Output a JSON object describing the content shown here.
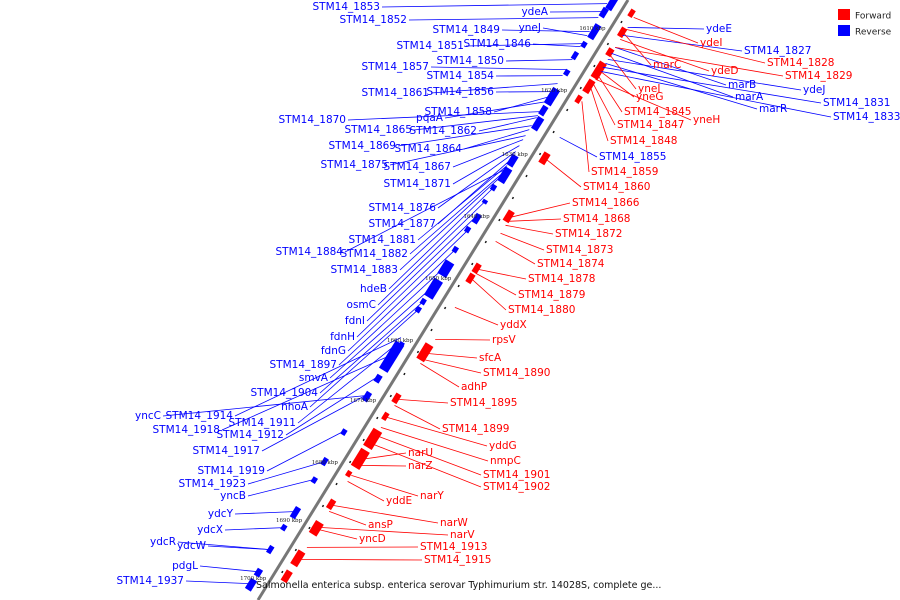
{
  "legend": [
    {
      "label": "Forward",
      "color": "#ff0000"
    },
    {
      "label": "Reverse",
      "color": "#0000ff"
    }
  ],
  "caption": "Salmonella enterica subsp. enterica serovar Typhimurium str. 14028S, complete ge...",
  "colors": {
    "forward": "#ff0000",
    "reverse": "#0000ff",
    "axis": "#777777"
  },
  "ticks": [
    "1610 kbp",
    "1620 kbp",
    "1630 kbp",
    "1640 kbp",
    "1650 kbp",
    "1660 kbp",
    "1670 kbp",
    "1680 kbp",
    "1690 kbp",
    "1700 kbp"
  ],
  "reverse_labels": [
    "STM14_1853",
    "STM14_1852",
    "ydeA",
    "STM14_1849",
    "yneJ",
    "STM14_1851",
    "STM14_1846",
    "STM14_1850",
    "STM14_1857",
    "STM14_1854",
    "STM14_1861",
    "STM14_1856",
    "STM14_1858",
    "pqaA",
    "STM14_1870",
    "STM14_1865",
    "STM14_1862",
    "STM14_1869",
    "STM14_1864",
    "STM14_1875",
    "STM14_1867",
    "STM14_1871",
    "STM14_1876",
    "STM14_1877",
    "STM14_1881",
    "STM14_1884",
    "STM14_1882",
    "STM14_1883",
    "hdeB",
    "osmC",
    "fdnI",
    "fdnH",
    "fdnG",
    "STM14_1897",
    "smvA",
    "STM14_1904",
    "nhoA",
    "yncC",
    "STM14_1914",
    "STM14_1911",
    "STM14_1918",
    "STM14_1912",
    "STM14_1917",
    "STM14_1919",
    "STM14_1923",
    "yncB",
    "ydcY",
    "ydcX",
    "ydcR",
    "ydcW",
    "pdgL",
    "STM14_1937"
  ],
  "right_blue_labels": [
    "ydeE",
    "STM14_1827",
    "marB",
    "marA",
    "ydeJ",
    "marR",
    "STM14_1831",
    "STM14_1833",
    "STM14_1855"
  ],
  "forward_labels": [
    "ydeI",
    "STM14_1828",
    "marC",
    "ydeD",
    "STM14_1829",
    "yneI",
    "yneG",
    "STM14_1845",
    "yneH",
    "STM14_1847",
    "STM14_1848",
    "STM14_1859",
    "STM14_1860",
    "STM14_1866",
    "STM14_1868",
    "STM14_1872",
    "STM14_1873",
    "STM14_1874",
    "STM14_1878",
    "STM14_1879",
    "STM14_1880",
    "yddX",
    "rpsV",
    "sfcA",
    "STM14_1890",
    "adhP",
    "STM14_1895",
    "STM14_1899",
    "yddG",
    "nmpC",
    "STM14_1901",
    "STM14_1902",
    "narU",
    "narZ",
    "narY",
    "yddE",
    "narW",
    "ansP",
    "narV",
    "yncD",
    "STM14_1913",
    "STM14_1915"
  ]
}
